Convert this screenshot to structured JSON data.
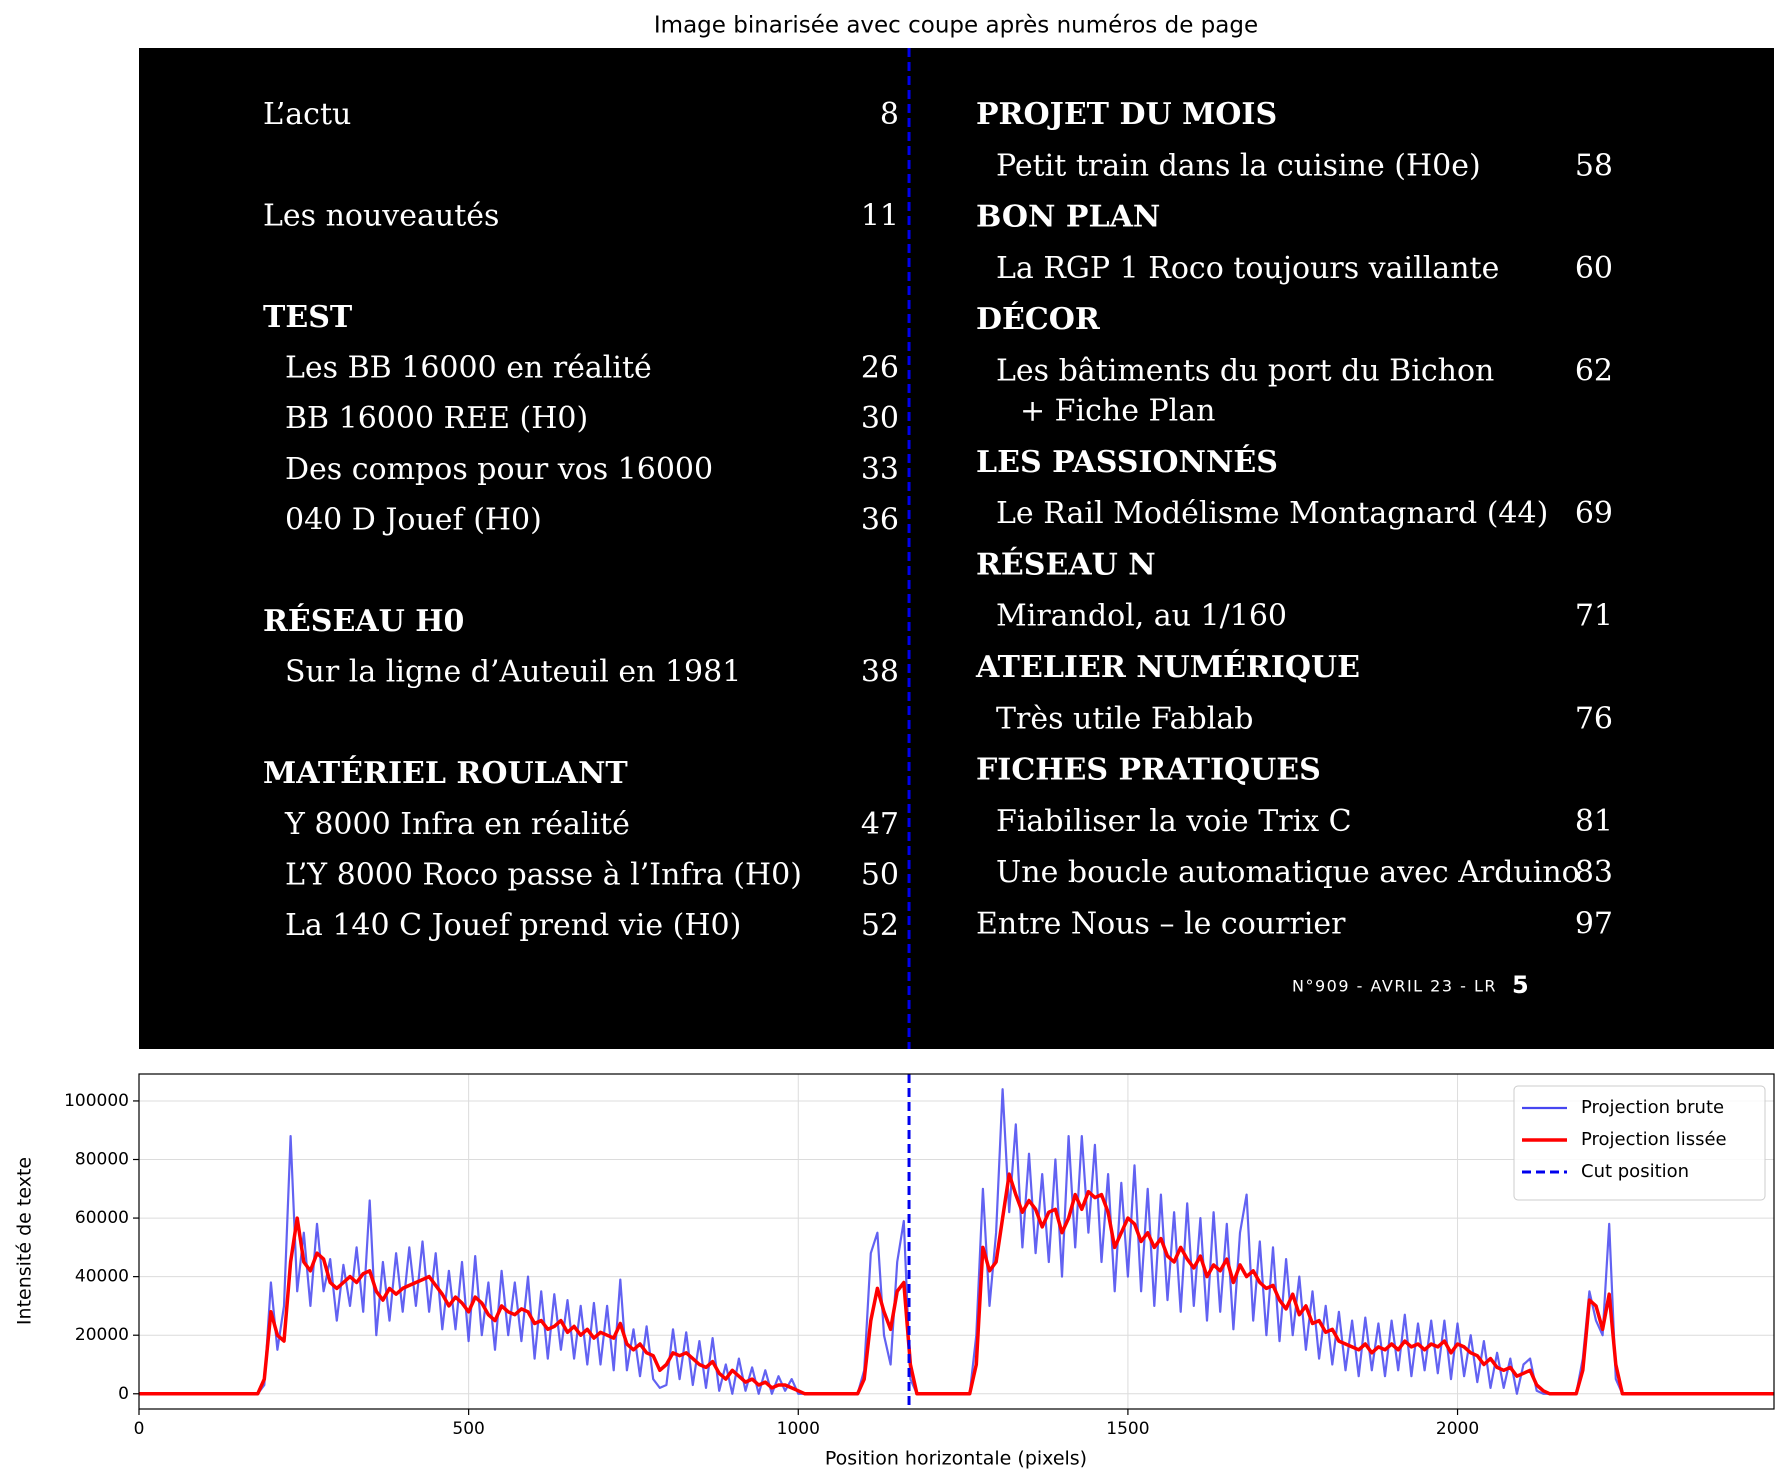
{
  "image": {
    "title": "Image binarisée avec coupe après numéros de page",
    "columns": [
      {
        "sections": [
          {
            "items": [
              {
                "text": "L’actu",
                "page": 8
              }
            ]
          },
          {
            "items": [
              {
                "text": "Les nouveautés",
                "page": 11
              }
            ]
          },
          {
            "heading": "TEST",
            "items": [
              {
                "text": "Les BB 16000 en réalité",
                "page": 26
              },
              {
                "text": "BB 16000 REE (H0)",
                "page": 30
              },
              {
                "text": "Des compos pour vos 16000",
                "page": 33
              },
              {
                "text": "040 D Jouef (H0)",
                "page": 36
              }
            ]
          },
          {
            "heading": "RÉSEAU H0",
            "items": [
              {
                "text": "Sur la ligne d’Auteuil en 1981",
                "page": 38
              }
            ]
          },
          {
            "heading": "MATÉRIEL ROULANT",
            "items": [
              {
                "text": "Y 8000 Infra en réalité",
                "page": 47
              },
              {
                "text": "L’Y 8000 Roco passe à l’Infra (H0)",
                "page": 50
              },
              {
                "text": "La 140 C Jouef prend vie (H0)",
                "page": 52
              }
            ]
          }
        ]
      },
      {
        "sections": [
          {
            "heading": "PROJET DU MOIS",
            "items": [
              {
                "text": "Petit train dans la cuisine (H0e)",
                "page": 58
              }
            ]
          },
          {
            "heading": "BON PLAN",
            "items": [
              {
                "text": "La RGP 1 Roco toujours vaillante",
                "page": 60
              }
            ]
          },
          {
            "heading": "DÉCOR",
            "items": [
              {
                "text": "Les bâtiments du port du Bichon",
                "continuation": "+ Fiche Plan",
                "page": 62
              }
            ]
          },
          {
            "heading": "LES PASSIONNÉS",
            "items": [
              {
                "text": "Le Rail Modélisme Montagnard (44)",
                "page": 69
              }
            ]
          },
          {
            "heading": "RÉSEAU N",
            "items": [
              {
                "text": "Mirandol, au 1/160",
                "page": 71
              }
            ]
          },
          {
            "heading": "ATELIER NUMÉRIQUE",
            "items": [
              {
                "text": "Très utile Fablab",
                "page": 76
              }
            ]
          },
          {
            "heading": "FICHES PRATIQUES",
            "items": [
              {
                "text": "Fiabiliser la voie Trix C",
                "page": 81
              },
              {
                "text": "Une boucle automatique avec Arduino",
                "page": 83
              }
            ]
          },
          {
            "items": [
              {
                "text": "Entre Nous – le courrier",
                "page": 97
              }
            ]
          }
        ]
      }
    ],
    "footer": {
      "text": "N°909 - AVRIL 23 - LR",
      "page": 5
    }
  },
  "chart_data": {
    "type": "line",
    "xlabel": "Position horizontale (pixels)",
    "ylabel": "Intensité de texte",
    "xlim": [
      0,
      2480
    ],
    "ylim": [
      -5200,
      109200
    ],
    "xticks": [
      0,
      500,
      1000,
      1500,
      2000
    ],
    "yticks": [
      0,
      20000,
      40000,
      60000,
      80000,
      100000
    ],
    "grid": true,
    "legend": "upper right",
    "x": [
      0,
      10,
      20,
      30,
      40,
      50,
      60,
      70,
      80,
      90,
      100,
      110,
      120,
      130,
      140,
      150,
      160,
      170,
      180,
      190,
      200,
      210,
      220,
      230,
      240,
      250,
      260,
      270,
      280,
      290,
      300,
      310,
      320,
      330,
      340,
      350,
      360,
      370,
      380,
      390,
      400,
      410,
      420,
      430,
      440,
      450,
      460,
      470,
      480,
      490,
      500,
      510,
      520,
      530,
      540,
      550,
      560,
      570,
      580,
      590,
      600,
      610,
      620,
      630,
      640,
      650,
      660,
      670,
      680,
      690,
      700,
      710,
      720,
      730,
      740,
      750,
      760,
      770,
      780,
      790,
      800,
      810,
      820,
      830,
      840,
      850,
      860,
      870,
      880,
      890,
      900,
      910,
      920,
      930,
      940,
      950,
      960,
      970,
      980,
      990,
      1000,
      1010,
      1020,
      1030,
      1040,
      1050,
      1060,
      1070,
      1080,
      1090,
      1100,
      1110,
      1120,
      1130,
      1140,
      1150,
      1160,
      1170,
      1180,
      1190,
      1200,
      1210,
      1220,
      1230,
      1240,
      1250,
      1260,
      1270,
      1280,
      1290,
      1300,
      1310,
      1320,
      1330,
      1340,
      1350,
      1360,
      1370,
      1380,
      1390,
      1400,
      1410,
      1420,
      1430,
      1440,
      1450,
      1460,
      1470,
      1480,
      1490,
      1500,
      1510,
      1520,
      1530,
      1540,
      1550,
      1560,
      1570,
      1580,
      1590,
      1600,
      1610,
      1620,
      1630,
      1640,
      1650,
      1660,
      1670,
      1680,
      1690,
      1700,
      1710,
      1720,
      1730,
      1740,
      1750,
      1760,
      1770,
      1780,
      1790,
      1800,
      1810,
      1820,
      1830,
      1840,
      1850,
      1860,
      1870,
      1880,
      1890,
      1900,
      1910,
      1920,
      1930,
      1940,
      1950,
      1960,
      1970,
      1980,
      1990,
      2000,
      2010,
      2020,
      2030,
      2040,
      2050,
      2060,
      2070,
      2080,
      2090,
      2100,
      2110,
      2120,
      2130,
      2140,
      2150,
      2160,
      2170,
      2180,
      2190,
      2200,
      2210,
      2220,
      2230,
      2240,
      2250,
      2260,
      2270,
      2280,
      2290,
      2300,
      2310,
      2320,
      2330,
      2340,
      2350,
      2360,
      2370,
      2380,
      2390,
      2400,
      2410,
      2420,
      2430,
      2440,
      2450,
      2460,
      2470,
      2480
    ],
    "series": [
      {
        "name": "Projection brute",
        "color": "#4646f0",
        "values": [
          0,
          0,
          0,
          0,
          0,
          0,
          0,
          0,
          0,
          0,
          0,
          0,
          0,
          0,
          0,
          0,
          0,
          0,
          0,
          3000,
          38000,
          15000,
          30000,
          88000,
          35000,
          55000,
          30000,
          58000,
          35000,
          46000,
          25000,
          44000,
          30000,
          50000,
          28000,
          66000,
          20000,
          45000,
          25000,
          48000,
          28000,
          50000,
          30000,
          52000,
          28000,
          48000,
          22000,
          42000,
          22000,
          45000,
          18000,
          47000,
          20000,
          38000,
          15000,
          42000,
          20000,
          38000,
          18000,
          40000,
          12000,
          35000,
          12000,
          34000,
          15000,
          32000,
          12000,
          30000,
          10000,
          31000,
          10000,
          30000,
          8000,
          39000,
          8000,
          22000,
          6000,
          23000,
          5000,
          2000,
          3000,
          22000,
          5000,
          21000,
          3000,
          18000,
          2000,
          19000,
          1000,
          10000,
          0,
          12000,
          1000,
          9000,
          0,
          8000,
          0,
          6000,
          1000,
          5000,
          0,
          0,
          0,
          0,
          0,
          0,
          0,
          0,
          0,
          0,
          8000,
          48000,
          55000,
          20000,
          10000,
          45000,
          59000,
          5000,
          0,
          0,
          0,
          0,
          0,
          0,
          0,
          0,
          0,
          20000,
          70000,
          30000,
          55000,
          104000,
          62000,
          92000,
          50000,
          82000,
          48000,
          75000,
          45000,
          80000,
          40000,
          88000,
          50000,
          88000,
          55000,
          85000,
          45000,
          75000,
          35000,
          72000,
          40000,
          78000,
          35000,
          70000,
          30000,
          68000,
          32000,
          62000,
          28000,
          65000,
          30000,
          60000,
          25000,
          62000,
          28000,
          58000,
          22000,
          55000,
          68000,
          25000,
          52000,
          20000,
          50000,
          18000,
          46000,
          20000,
          40000,
          15000,
          35000,
          12000,
          30000,
          10000,
          28000,
          8000,
          25000,
          6000,
          26000,
          8000,
          24000,
          6000,
          25000,
          8000,
          27000,
          6000,
          24000,
          8000,
          25000,
          7000,
          25000,
          5000,
          24000,
          6000,
          20000,
          4000,
          18000,
          2000,
          14000,
          2000,
          12000,
          0,
          10000,
          12000,
          1000,
          0,
          0,
          0,
          0,
          0,
          0,
          12000,
          35000,
          25000,
          20000,
          58000,
          5000,
          0,
          0,
          0,
          0,
          0,
          0,
          0,
          0,
          0,
          0,
          0,
          0,
          0,
          0,
          0,
          0,
          0,
          0,
          0,
          0,
          0,
          0,
          0,
          0
        ]
      },
      {
        "name": "Projection lissée",
        "color": "#ff0000",
        "values": [
          0,
          0,
          0,
          0,
          0,
          0,
          0,
          0,
          0,
          0,
          0,
          0,
          0,
          0,
          0,
          0,
          0,
          0,
          0,
          5000,
          28000,
          20000,
          18000,
          45000,
          60000,
          45000,
          42000,
          48000,
          46000,
          38000,
          36000,
          38000,
          40000,
          38000,
          41000,
          42000,
          35000,
          32000,
          36000,
          34000,
          36000,
          37000,
          38000,
          39000,
          40000,
          37000,
          34000,
          30000,
          33000,
          31000,
          28000,
          33000,
          31000,
          27000,
          25000,
          30000,
          28000,
          27000,
          29000,
          28000,
          24000,
          25000,
          22000,
          23000,
          25000,
          21000,
          23000,
          20000,
          22000,
          19000,
          21000,
          20000,
          19000,
          24000,
          17000,
          15000,
          17000,
          14000,
          13000,
          8000,
          10000,
          14000,
          13000,
          14000,
          12000,
          10000,
          9000,
          11000,
          7000,
          5000,
          8000,
          6000,
          4000,
          5000,
          3000,
          4000,
          2000,
          3000,
          3000,
          2000,
          1000,
          0,
          0,
          0,
          0,
          0,
          0,
          0,
          0,
          0,
          5000,
          25000,
          36000,
          28000,
          22000,
          35000,
          38000,
          10000,
          0,
          0,
          0,
          0,
          0,
          0,
          0,
          0,
          0,
          10000,
          50000,
          42000,
          45000,
          60000,
          75000,
          68000,
          62000,
          66000,
          63000,
          57000,
          62000,
          63000,
          55000,
          60000,
          68000,
          63000,
          69000,
          67000,
          68000,
          62000,
          50000,
          55000,
          60000,
          58000,
          52000,
          55000,
          50000,
          53000,
          47000,
          45000,
          50000,
          46000,
          43000,
          47000,
          40000,
          44000,
          42000,
          46000,
          38000,
          44000,
          40000,
          42000,
          38000,
          36000,
          37000,
          32000,
          29000,
          34000,
          27000,
          30000,
          24000,
          25000,
          21000,
          22000,
          18000,
          17000,
          16000,
          15000,
          17000,
          14000,
          16000,
          15000,
          17000,
          15000,
          18000,
          16000,
          17000,
          15000,
          17000,
          16000,
          18000,
          14000,
          17000,
          16000,
          14000,
          13000,
          10000,
          12000,
          9000,
          8000,
          9000,
          6000,
          7000,
          8000,
          3000,
          1000,
          0,
          0,
          0,
          0,
          0,
          8000,
          32000,
          30000,
          22000,
          34000,
          10000,
          0,
          0,
          0,
          0,
          0,
          0,
          0,
          0,
          0,
          0,
          0,
          0,
          0,
          0,
          0,
          0,
          0,
          0,
          0,
          0,
          0,
          0,
          0,
          0
        ]
      }
    ],
    "vlines": [
      {
        "name": "Cut position",
        "x": 1168,
        "color": "#0000ee"
      }
    ]
  }
}
